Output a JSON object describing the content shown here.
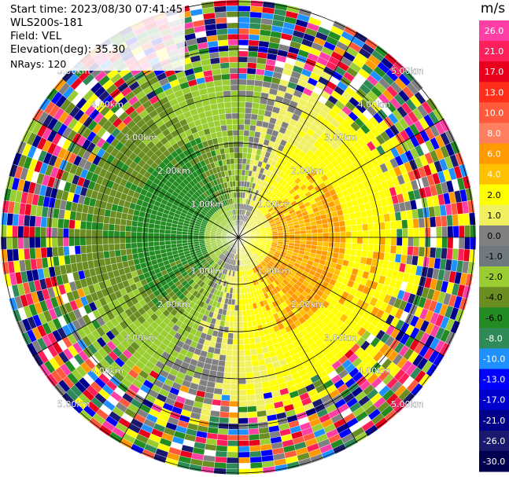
{
  "info": {
    "start_time": "Start time: 2023/08/30 07:41:45",
    "site": "WLS200s-181",
    "field": "Field: VEL",
    "elevation": "Elevation(deg): 35.30",
    "nrays": "NRays: 120"
  },
  "colorbar": {
    "unit": "m/s",
    "ticks": [
      "26.0",
      "21.0",
      "17.0",
      "13.0",
      "10.0",
      "8.0",
      "6.0",
      "4.0",
      "2.0",
      "1.0",
      "0.0",
      "-1.0",
      "-2.0",
      "-4.0",
      "-6.0",
      "-8.0",
      "-10.0",
      "-13.0",
      "-17.0",
      "-21.0",
      "-26.0",
      "-30.0"
    ],
    "colors": [
      "#ff3fa6",
      "#ff1f5a",
      "#e8001c",
      "#ff2e1a",
      "#ff5a3c",
      "#ff8060",
      "#ff9a00",
      "#ffc000",
      "#ffff00",
      "#f0f060",
      "#808080",
      "#6e7a80",
      "#9acd32",
      "#6b8e23",
      "#228b22",
      "#2e8b57",
      "#1e90ff",
      "#0000ff",
      "#0000cd",
      "#00008b",
      "#191970",
      "#000050"
    ]
  },
  "range_rings": {
    "labels": [
      "1.00km",
      "2.00km",
      "3.00km",
      "4.00km",
      "5.00km"
    ]
  }
}
